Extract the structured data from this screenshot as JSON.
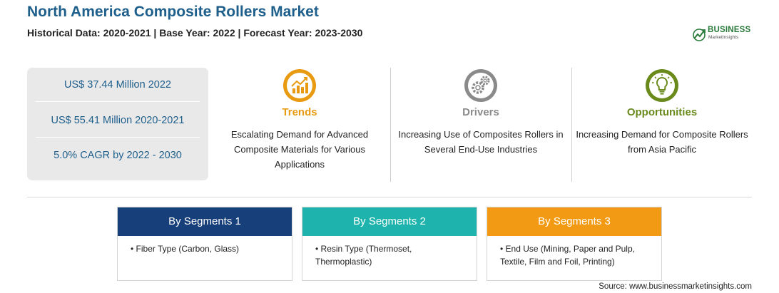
{
  "header": {
    "title": "North America Composite Rollers Market",
    "subtitle": "Historical Data: 2020-2021 | Base Year: 2022 | Forecast Year: 2023-2030"
  },
  "logo": {
    "brand": "BUSINESS",
    "tagline": "MarketInsights",
    "color": "#2a7a3a"
  },
  "stats": [
    "US$ 37.44 Million 2022",
    "US$ 55.41 Million 2020-2021",
    "5.0% CAGR by 2022 - 2030"
  ],
  "columns": [
    {
      "heading": "Trends",
      "icon": "trend-chart-icon",
      "color": "#e89a10",
      "description": "Escalating Demand for Advanced Composite Materials for Various Applications"
    },
    {
      "heading": "Drivers",
      "icon": "gears-icon",
      "color": "#8a8a8a",
      "description": "Increasing Use of Composites Rollers in Several End-Use Industries"
    },
    {
      "heading": "Opportunities",
      "icon": "lightbulb-icon",
      "color": "#6a8a1c",
      "description": "Increasing Demand for Composite Rollers from Asia Pacific"
    }
  ],
  "segments": [
    {
      "title": "By Segments 1",
      "color": "#173f7a",
      "item": "Fiber Type (Carbon, Glass)"
    },
    {
      "title": "By Segments 2",
      "color": "#1fb3ad",
      "item": "Resin Type (Thermoset, Thermoplastic)"
    },
    {
      "title": "By Segments 3",
      "color": "#f29a13",
      "item": "End Use (Mining, Paper and Pulp, Textile, Film and Foil, Printing)"
    }
  ],
  "bullet": "•",
  "source": "Source: www.businessmarketinsights.com"
}
